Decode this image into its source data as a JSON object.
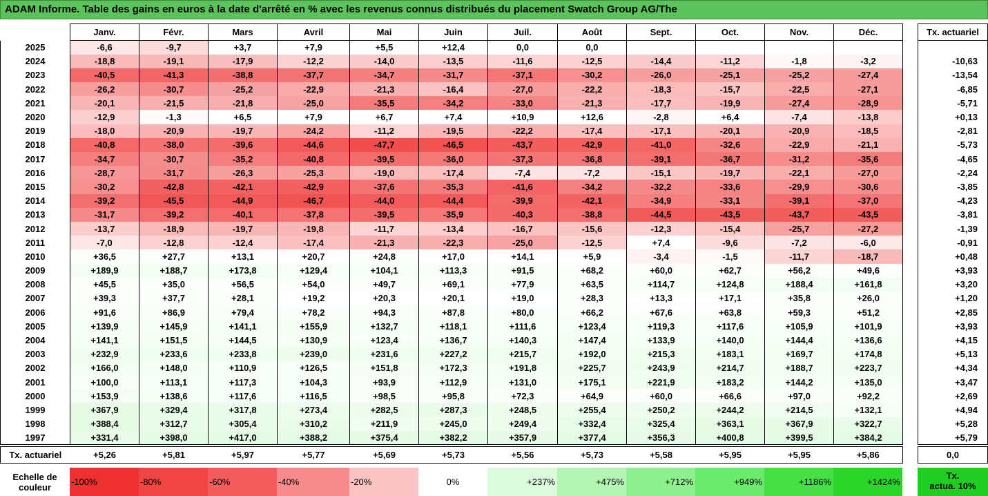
{
  "title": "ADAM Informe. Table des gains en euros à la date d'arrêté en % avec les revenus connus distribués du placement Swatch Group AG/The",
  "months": [
    "Janv.",
    "Févr.",
    "Mars",
    "Avril",
    "Mai",
    "Juin",
    "Juil.",
    "Août",
    "Sept.",
    "Oct.",
    "Nov.",
    "Déc."
  ],
  "side_header": "Tx. actuariel",
  "rows": [
    {
      "year": "2025",
      "values": [
        "-6,6",
        "-9,7",
        "+3,7",
        "+7,9",
        "+5,5",
        "+12,4",
        "0,0",
        "0,0",
        "",
        "",
        "",
        ""
      ],
      "rate": ""
    },
    {
      "year": "2024",
      "values": [
        "-18,8",
        "-19,1",
        "-17,9",
        "-12,2",
        "-14,0",
        "-13,5",
        "-11,6",
        "-12,5",
        "-14,4",
        "-11,2",
        "-1,8",
        "-3,2"
      ],
      "rate": "-10,63"
    },
    {
      "year": "2023",
      "values": [
        "-40,5",
        "-41,3",
        "-38,8",
        "-37,7",
        "-34,7",
        "-31,7",
        "-37,1",
        "-30,2",
        "-26,0",
        "-25,1",
        "-25,2",
        "-27,4"
      ],
      "rate": "-13,54"
    },
    {
      "year": "2022",
      "values": [
        "-26,2",
        "-30,7",
        "-25,2",
        "-22,9",
        "-21,3",
        "-16,4",
        "-27,0",
        "-22,2",
        "-18,3",
        "-15,7",
        "-22,5",
        "-27,1"
      ],
      "rate": "-6,85"
    },
    {
      "year": "2021",
      "values": [
        "-20,1",
        "-21,5",
        "-21,8",
        "-25,0",
        "-35,5",
        "-34,2",
        "-33,0",
        "-21,3",
        "-17,7",
        "-19,9",
        "-27,4",
        "-28,9"
      ],
      "rate": "-5,71"
    },
    {
      "year": "2020",
      "values": [
        "-12,9",
        "-1,3",
        "+6,5",
        "+7,9",
        "+6,7",
        "+7,4",
        "+10,9",
        "+12,6",
        "-2,8",
        "+6,4",
        "-7,4",
        "-13,8"
      ],
      "rate": "+0,13"
    },
    {
      "year": "2019",
      "values": [
        "-18,0",
        "-20,9",
        "-19,7",
        "-24,2",
        "-11,2",
        "-19,5",
        "-22,2",
        "-17,4",
        "-17,1",
        "-20,1",
        "-20,9",
        "-18,5"
      ],
      "rate": "-2,81"
    },
    {
      "year": "2018",
      "values": [
        "-40,8",
        "-38,0",
        "-39,6",
        "-44,6",
        "-47,7",
        "-46,5",
        "-43,7",
        "-42,9",
        "-41,0",
        "-32,6",
        "-22,9",
        "-21,1"
      ],
      "rate": "-5,73"
    },
    {
      "year": "2017",
      "values": [
        "-34,7",
        "-30,7",
        "-35,2",
        "-40,8",
        "-39,5",
        "-36,0",
        "-37,3",
        "-36,8",
        "-39,1",
        "-36,7",
        "-31,2",
        "-35,6"
      ],
      "rate": "-4,65"
    },
    {
      "year": "2016",
      "values": [
        "-28,7",
        "-31,7",
        "-26,3",
        "-25,3",
        "-19,0",
        "-17,4",
        "-7,4",
        "-7,2",
        "-15,1",
        "-19,7",
        "-22,1",
        "-27,0"
      ],
      "rate": "-2,24"
    },
    {
      "year": "2015",
      "values": [
        "-30,2",
        "-42,8",
        "-42,1",
        "-42,9",
        "-37,6",
        "-35,3",
        "-41,6",
        "-34,2",
        "-32,2",
        "-33,6",
        "-29,9",
        "-30,6"
      ],
      "rate": "-3,85"
    },
    {
      "year": "2014",
      "values": [
        "-39,2",
        "-45,5",
        "-44,9",
        "-46,7",
        "-44,0",
        "-44,4",
        "-39,9",
        "-42,1",
        "-34,9",
        "-33,1",
        "-39,1",
        "-37,0"
      ],
      "rate": "-4,23"
    },
    {
      "year": "2013",
      "values": [
        "-31,7",
        "-39,2",
        "-40,1",
        "-37,8",
        "-39,5",
        "-35,9",
        "-40,3",
        "-38,8",
        "-44,5",
        "-43,5",
        "-43,7",
        "-43,5"
      ],
      "rate": "-3,81"
    },
    {
      "year": "2012",
      "values": [
        "-13,7",
        "-18,9",
        "-19,7",
        "-19,8",
        "-11,7",
        "-13,4",
        "-16,7",
        "-15,6",
        "-12,3",
        "-15,4",
        "-25,7",
        "-27,2"
      ],
      "rate": "-1,39"
    },
    {
      "year": "2011",
      "values": [
        "-7,0",
        "-12,8",
        "-12,4",
        "-17,4",
        "-21,3",
        "-22,3",
        "-25,0",
        "-12,5",
        "+7,4",
        "-9,6",
        "-7,2",
        "-6,0"
      ],
      "rate": "-0,91"
    },
    {
      "year": "2010",
      "values": [
        "+36,5",
        "+27,7",
        "+13,1",
        "+20,7",
        "+24,8",
        "+17,0",
        "+14,1",
        "+5,9",
        "-3,4",
        "-1,5",
        "-11,7",
        "-18,7"
      ],
      "rate": "+0,48"
    },
    {
      "year": "2009",
      "values": [
        "+189,9",
        "+188,7",
        "+173,8",
        "+129,4",
        "+104,1",
        "+113,3",
        "+91,5",
        "+68,2",
        "+60,0",
        "+62,7",
        "+56,2",
        "+49,6"
      ],
      "rate": "+3,93"
    },
    {
      "year": "2008",
      "values": [
        "+45,5",
        "+35,0",
        "+56,5",
        "+54,0",
        "+49,7",
        "+69,1",
        "+77,9",
        "+63,5",
        "+114,7",
        "+124,8",
        "+188,4",
        "+161,8"
      ],
      "rate": "+3,20"
    },
    {
      "year": "2007",
      "values": [
        "+39,3",
        "+37,7",
        "+28,1",
        "+19,2",
        "+20,3",
        "+20,1",
        "+19,0",
        "+28,3",
        "+13,3",
        "+17,1",
        "+35,8",
        "+26,0"
      ],
      "rate": "+1,20"
    },
    {
      "year": "2006",
      "values": [
        "+91,6",
        "+86,9",
        "+79,4",
        "+78,2",
        "+94,3",
        "+87,8",
        "+80,0",
        "+66,2",
        "+67,6",
        "+63,8",
        "+59,3",
        "+51,2"
      ],
      "rate": "+2,85"
    },
    {
      "year": "2005",
      "values": [
        "+139,9",
        "+145,9",
        "+141,1",
        "+155,9",
        "+132,7",
        "+118,1",
        "+111,6",
        "+123,4",
        "+119,3",
        "+117,6",
        "+105,9",
        "+101,9"
      ],
      "rate": "+3,93"
    },
    {
      "year": "2004",
      "values": [
        "+141,1",
        "+151,5",
        "+144,5",
        "+130,9",
        "+123,4",
        "+136,7",
        "+140,3",
        "+147,4",
        "+133,9",
        "+140,0",
        "+144,4",
        "+136,6"
      ],
      "rate": "+4,15"
    },
    {
      "year": "2003",
      "values": [
        "+232,9",
        "+233,6",
        "+233,8",
        "+239,0",
        "+231,6",
        "+227,2",
        "+215,7",
        "+192,0",
        "+215,3",
        "+183,1",
        "+169,7",
        "+174,8"
      ],
      "rate": "+5,13"
    },
    {
      "year": "2002",
      "values": [
        "+166,0",
        "+148,0",
        "+110,9",
        "+126,5",
        "+151,8",
        "+172,3",
        "+191,8",
        "+225,7",
        "+243,9",
        "+214,7",
        "+188,7",
        "+223,7"
      ],
      "rate": "+4,34"
    },
    {
      "year": "2001",
      "values": [
        "+100,0",
        "+113,1",
        "+117,3",
        "+104,3",
        "+93,9",
        "+112,9",
        "+131,0",
        "+175,1",
        "+221,9",
        "+183,2",
        "+144,2",
        "+135,0"
      ],
      "rate": "+3,47"
    },
    {
      "year": "2000",
      "values": [
        "+153,9",
        "+138,6",
        "+117,6",
        "+116,5",
        "+98,5",
        "+95,8",
        "+72,3",
        "+64,9",
        "+60,0",
        "+66,6",
        "+97,0",
        "+92,2"
      ],
      "rate": "+2,69"
    },
    {
      "year": "1999",
      "values": [
        "+367,9",
        "+329,4",
        "+317,8",
        "+273,4",
        "+282,5",
        "+287,3",
        "+248,5",
        "+255,4",
        "+250,2",
        "+244,2",
        "+214,5",
        "+132,1"
      ],
      "rate": "+4,94"
    },
    {
      "year": "1998",
      "values": [
        "+388,4",
        "+312,7",
        "+305,4",
        "+310,2",
        "+211,9",
        "+245,0",
        "+249,4",
        "+332,4",
        "+325,4",
        "+363,1",
        "+367,9",
        "+322,7"
      ],
      "rate": "+5,28"
    },
    {
      "year": "1997",
      "values": [
        "+331,4",
        "+398,0",
        "+417,0",
        "+388,2",
        "+375,4",
        "+382,2",
        "+357,9",
        "+377,4",
        "+356,3",
        "+400,8",
        "+399,5",
        "+384,2"
      ],
      "rate": "+5,79"
    }
  ],
  "footer": {
    "label": "Tx. actuariel",
    "values": [
      "+5,26",
      "+5,81",
      "+5,97",
      "+5,77",
      "+5,69",
      "+5,73",
      "+5,56",
      "+5,73",
      "+5,58",
      "+5,95",
      "+5,95",
      "+5,86"
    ],
    "side": "0,0"
  },
  "legend": {
    "label_line1": "Echelle de",
    "label_line2": "couleur",
    "items": [
      {
        "text": "-100%",
        "color": "#ee3030",
        "align": "left"
      },
      {
        "text": "-80%",
        "color": "#f04545",
        "align": "left"
      },
      {
        "text": "-60%",
        "color": "#f35d5d",
        "align": "left"
      },
      {
        "text": "-40%",
        "color": "#f78a8a",
        "align": "left"
      },
      {
        "text": "-20%",
        "color": "#fbc4c4",
        "align": "left"
      },
      {
        "text": "0%",
        "color": "#ffffff",
        "align": "center"
      },
      {
        "text": "+237%",
        "color": "#dcfadc",
        "align": "right"
      },
      {
        "text": "+475%",
        "color": "#b4f5b4",
        "align": "right"
      },
      {
        "text": "+712%",
        "color": "#8ef08e",
        "align": "right"
      },
      {
        "text": "+949%",
        "color": "#6cea6c",
        "align": "right"
      },
      {
        "text": "+1186%",
        "color": "#46e046",
        "align": "right"
      },
      {
        "text": "+1424%",
        "color": "#2ad62a",
        "align": "right"
      }
    ],
    "side_line1": "Tx.",
    "side_line2": "actua. 10%"
  }
}
